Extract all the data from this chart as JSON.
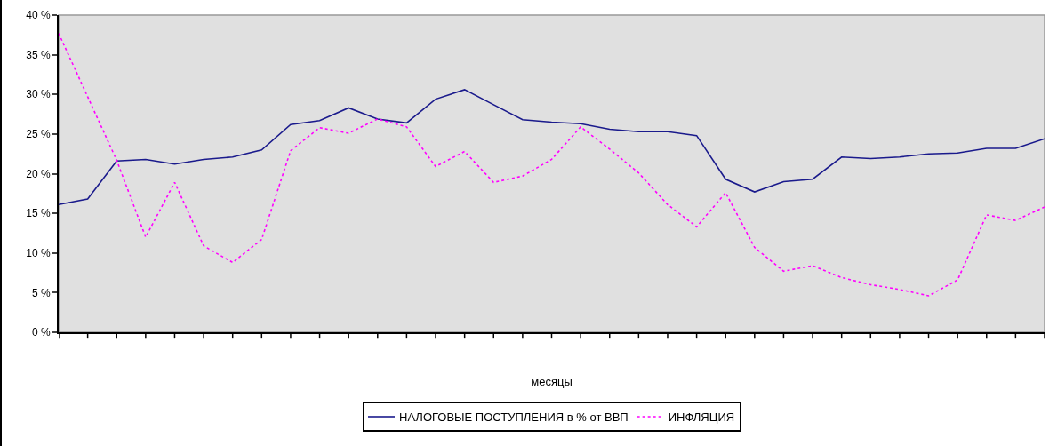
{
  "chart_data": {
    "type": "line",
    "xlabel": "месяцы",
    "categories": [
      null,
      null,
      null,
      null,
      null,
      null,
      null,
      null,
      null,
      null,
      null,
      null,
      null,
      null,
      null,
      null,
      null,
      null,
      null,
      null,
      null,
      null,
      null,
      null,
      null,
      null,
      null,
      null,
      null,
      null,
      null,
      null,
      null,
      null,
      null
    ],
    "series": [
      {
        "name": "НАЛОГОВЫЕ ПОСТУПЛЕНИЯ в % от ВВП",
        "color": "#1a1a8c",
        "line_style": "solid",
        "values": [
          16.1,
          16.8,
          21.6,
          21.8,
          21.2,
          21.8,
          22.1,
          23.0,
          26.2,
          26.7,
          28.3,
          26.9,
          26.4,
          29.4,
          30.6,
          28.7,
          26.8,
          26.5,
          26.3,
          25.6,
          25.3,
          25.3,
          24.8,
          19.3,
          17.7,
          19.0,
          19.3,
          22.1,
          21.9,
          22.1,
          22.5,
          22.6,
          23.2,
          23.2,
          24.4
        ]
      },
      {
        "name": "ИНФЛЯЦИЯ",
        "color": "#ff00ff",
        "line_style": "dotted",
        "values": [
          37.7,
          29.7,
          21.7,
          12.0,
          18.9,
          10.9,
          8.8,
          11.7,
          22.9,
          25.8,
          25.1,
          26.9,
          25.9,
          20.9,
          22.8,
          18.9,
          19.7,
          21.8,
          25.9,
          23.1,
          20.1,
          16.1,
          13.3,
          17.6,
          10.7,
          7.7,
          8.4,
          6.9,
          6.0,
          5.4,
          4.6,
          6.6,
          14.8,
          14.1,
          15.8
        ]
      }
    ],
    "ylim": [
      0,
      40
    ],
    "yticks": [
      {
        "value": 0,
        "label": "0 %"
      },
      {
        "value": 5,
        "label": "5 %"
      },
      {
        "value": 10,
        "label": "10 %"
      },
      {
        "value": 15,
        "label": "15 %"
      },
      {
        "value": 20,
        "label": "20 %"
      },
      {
        "value": 25,
        "label": "25 %"
      },
      {
        "value": 30,
        "label": "30 %"
      },
      {
        "value": 35,
        "label": "35 %"
      },
      {
        "value": 40,
        "label": "40 %"
      }
    ],
    "grid": false,
    "legend": "bottom",
    "marker": "none",
    "tick_labels": "y"
  }
}
